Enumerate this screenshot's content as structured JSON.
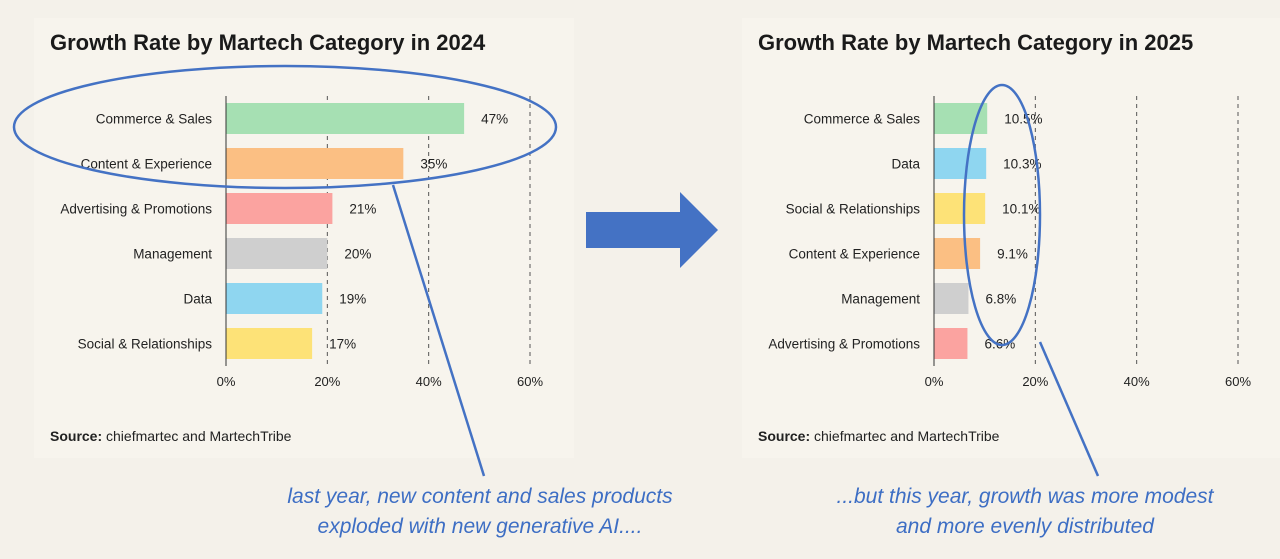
{
  "chart_data": [
    {
      "type": "bar",
      "orientation": "horizontal",
      "title": "Growth Rate by Martech Category in 2024",
      "categories": [
        "Commerce & Sales",
        "Content & Experience",
        "Advertising & Promotions",
        "Management",
        "Data",
        "Social & Relationships"
      ],
      "values": [
        47,
        35,
        21,
        20,
        19,
        17
      ],
      "value_labels": [
        "47%",
        "35%",
        "21%",
        "20%",
        "19%",
        "17%"
      ],
      "colors": [
        "#a6e0b3",
        "#fbbf83",
        "#fba3a0",
        "#cfcfcf",
        "#8fd6f0",
        "#fde277"
      ],
      "xlim": [
        0,
        60
      ],
      "xticks": [
        0,
        20,
        40,
        60
      ],
      "xtick_labels": [
        "0%",
        "20%",
        "40%",
        "60%"
      ],
      "grid": "vertical dashed",
      "source_label": "Source:",
      "source_text": " chiefmartec and MartechTribe"
    },
    {
      "type": "bar",
      "orientation": "horizontal",
      "title": "Growth Rate by Martech Category in 2025",
      "categories": [
        "Commerce & Sales",
        "Data",
        "Social & Relationships",
        "Content & Experience",
        "Management",
        "Advertising & Promotions"
      ],
      "values": [
        10.5,
        10.3,
        10.1,
        9.1,
        6.8,
        6.6
      ],
      "value_labels": [
        "10.5%",
        "10.3%",
        "10.1%",
        "9.1%",
        "6.8%",
        "6.6%"
      ],
      "colors": [
        "#a6e0b3",
        "#8fd6f0",
        "#fde277",
        "#fbbf83",
        "#cfcfcf",
        "#fba3a0"
      ],
      "xlim": [
        0,
        60
      ],
      "xticks": [
        0,
        20,
        40,
        60
      ],
      "xtick_labels": [
        "0%",
        "20%",
        "40%",
        "60%"
      ],
      "grid": "vertical dashed",
      "source_label": "Source:",
      "source_text": " chiefmartec and MartechTribe"
    }
  ],
  "annotations": {
    "left_caption": [
      "last year, new content and sales products",
      "exploded with new generative AI...."
    ],
    "right_caption": [
      "...but this year, growth was more modest",
      "and more evenly distributed"
    ],
    "accent_color": "#4472c4",
    "arrow_color": "#4472c4",
    "arrow_icon": "right-arrow-icon"
  }
}
